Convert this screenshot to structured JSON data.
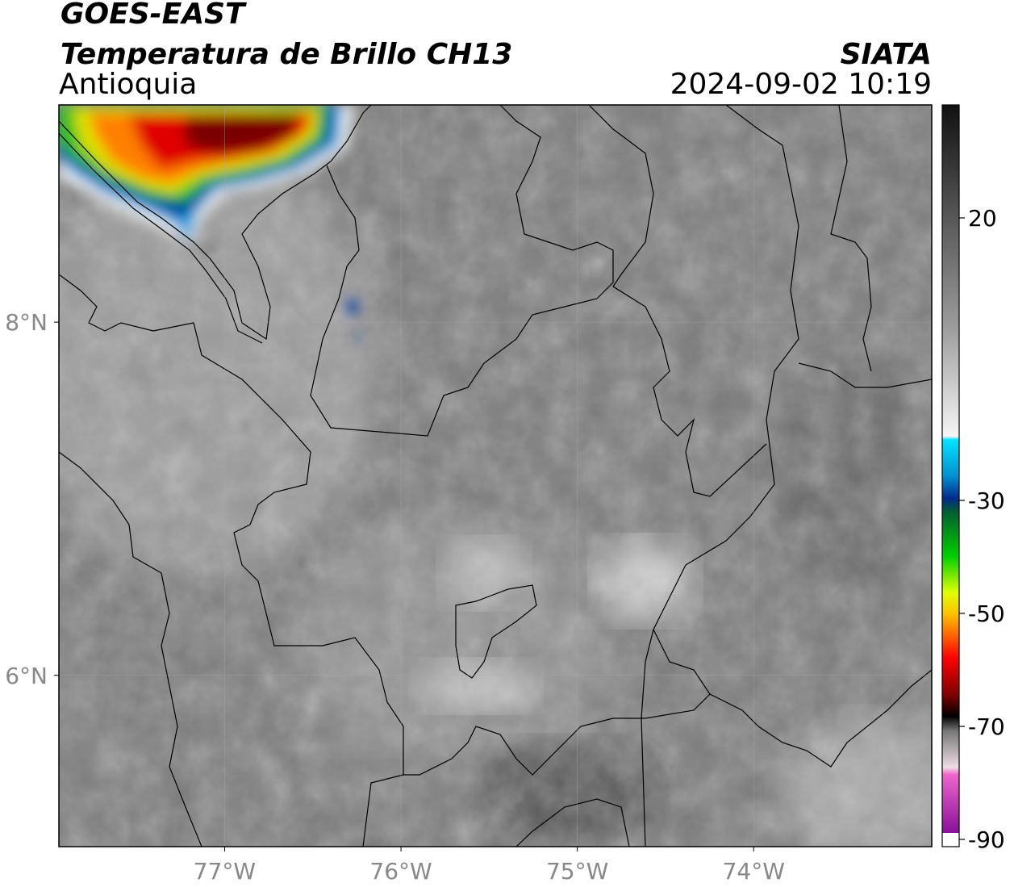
{
  "header": {
    "satellite": "GOES-EAST",
    "product": "Temperatura de Brillo CH13",
    "region": "Antioquia",
    "source": "SIATA",
    "datetime": "2024-09-02 10:19"
  },
  "map": {
    "extent": {
      "lon": [
        -77.94,
        -72.99
      ],
      "lat": [
        5.03,
        9.23
      ]
    },
    "lon_ticks": [
      {
        "value": -77,
        "label": "77°W"
      },
      {
        "value": -76,
        "label": "76°W"
      },
      {
        "value": -75,
        "label": "75°W"
      },
      {
        "value": -74,
        "label": "74°W"
      }
    ],
    "lat_ticks": [
      {
        "value": 8,
        "label": "8°N"
      },
      {
        "value": 6,
        "label": "6°N"
      }
    ]
  },
  "colorbar": {
    "range": [
      -90,
      40
    ],
    "ticks": [
      20,
      -30,
      -50,
      -70,
      -90
    ]
  }
}
